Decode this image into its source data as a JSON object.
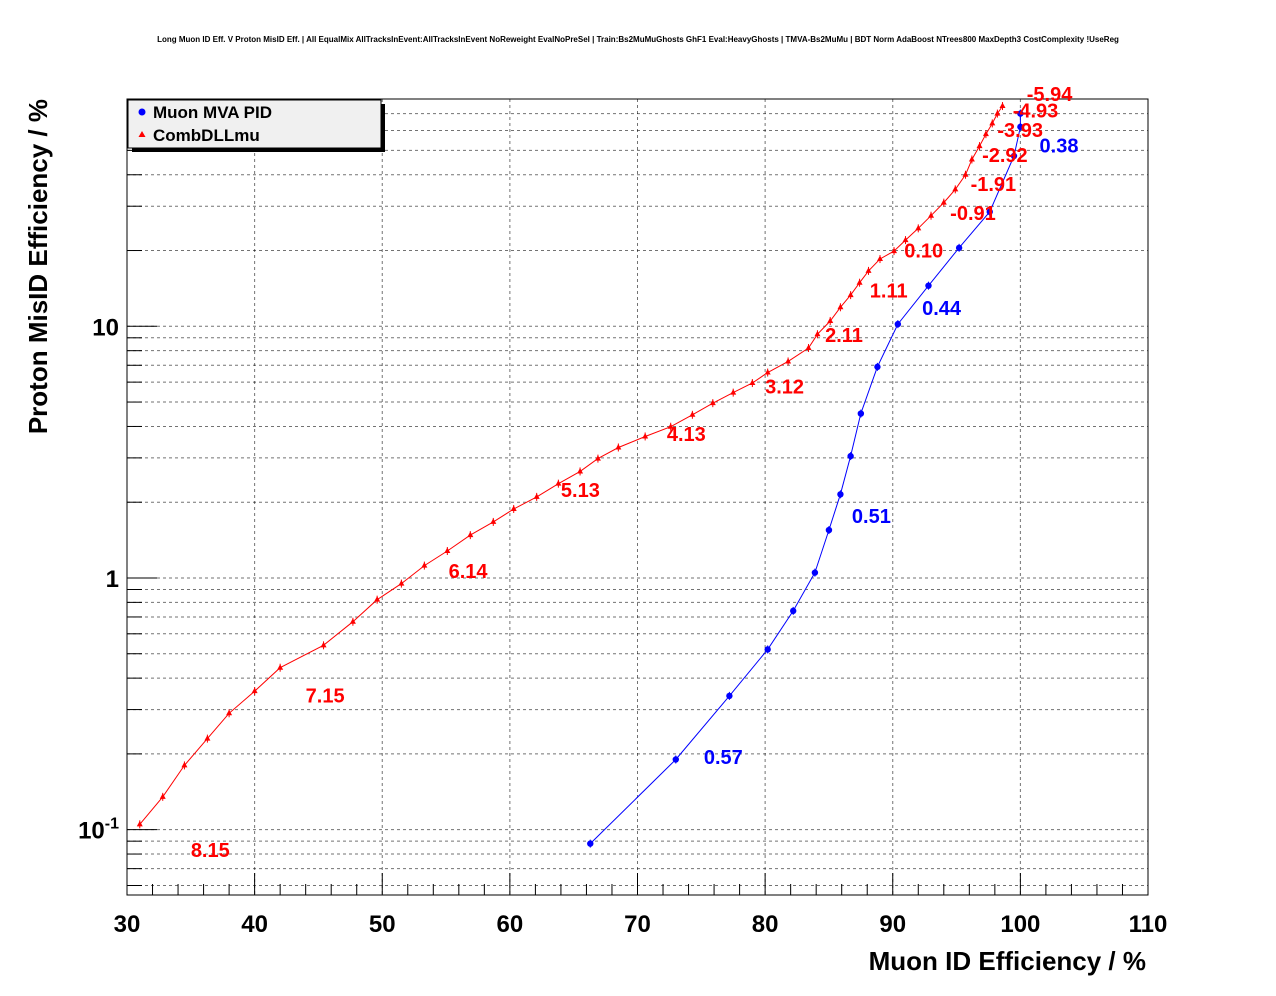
{
  "chart_data": {
    "type": "scatter",
    "title": "Long Muon ID Eff. V Proton MisID Eff. | All EqualMix AllTracksInEvent:AllTracksInEvent NoReweight EvalNoPreSel | Train:Bs2MuMuGhosts GhF1 Eval:HeavyGhosts | TMVA-Bs2MuMu | BDT Norm AdaBoost NTrees800 MaxDepth3 CostComplexity !UseReg",
    "xlabel": "Muon ID Efficiency / %",
    "ylabel": "Proton MisID Efficiency / %",
    "xlim": [
      30,
      110
    ],
    "ylim": [
      0.055,
      80
    ],
    "yscale": "log",
    "grid": true,
    "legend_position": "top-left",
    "x_ticks": [
      "30",
      "40",
      "50",
      "60",
      "70",
      "80",
      "90",
      "100",
      "110"
    ],
    "y_ticks": [
      {
        "value": 0.1,
        "base": "10",
        "exp": "-1"
      },
      {
        "value": 1,
        "base": "1",
        "exp": ""
      },
      {
        "value": 10,
        "base": "10",
        "exp": ""
      }
    ],
    "series": [
      {
        "name": "Muon MVA PID",
        "color": "#0000ff",
        "marker": "circle",
        "x": [
          66.3,
          73.0,
          77.2,
          80.2,
          82.2,
          83.9,
          85.0,
          85.9,
          86.7,
          87.5,
          88.8,
          90.4,
          92.8,
          95.2,
          97.6,
          99.5,
          100.0,
          100.0
        ],
        "y": [
          0.088,
          0.19,
          0.34,
          0.52,
          0.74,
          1.05,
          1.55,
          2.15,
          3.05,
          4.5,
          6.9,
          10.2,
          14.5,
          20.5,
          28.5,
          47.5,
          62.0,
          70.0
        ],
        "annotations": [
          {
            "text": "0.38",
            "x": 101.5,
            "y": 49
          },
          {
            "text": "0.44",
            "x": 92.3,
            "y": 11.1
          },
          {
            "text": "0.51",
            "x": 86.8,
            "y": 1.65
          },
          {
            "text": "0.57",
            "x": 75.2,
            "y": 0.182
          }
        ]
      },
      {
        "name": "CombDLLmu",
        "color": "#ff0000",
        "marker": "triangle",
        "x": [
          31.0,
          32.8,
          34.5,
          36.3,
          38.0,
          40.0,
          42.0,
          45.4,
          47.7,
          49.6,
          51.5,
          53.3,
          55.1,
          56.9,
          58.7,
          60.3,
          62.1,
          63.8,
          65.5,
          66.9,
          68.5,
          70.6,
          72.6,
          74.3,
          75.9,
          77.5,
          79.0,
          80.2,
          81.8,
          83.4,
          84.1,
          85.1,
          85.9,
          86.7,
          87.4,
          88.1,
          89.0,
          90.1,
          91.0,
          92.0,
          93.0,
          94.0,
          94.9,
          95.7,
          96.2,
          96.8,
          97.3,
          97.8,
          98.2,
          98.6
        ],
        "y": [
          0.105,
          0.135,
          0.18,
          0.23,
          0.29,
          0.355,
          0.44,
          0.54,
          0.67,
          0.82,
          0.95,
          1.12,
          1.28,
          1.48,
          1.67,
          1.88,
          2.1,
          2.37,
          2.65,
          2.98,
          3.3,
          3.65,
          3.99,
          4.45,
          4.95,
          5.45,
          5.95,
          6.55,
          7.25,
          8.2,
          9.3,
          10.5,
          11.9,
          13.3,
          14.9,
          16.6,
          18.5,
          19.9,
          22.0,
          24.5,
          27.5,
          31.0,
          35.0,
          40.0,
          46.0,
          52.0,
          58.0,
          64.0,
          70.0,
          75.0
        ],
        "annotations": [
          {
            "text": "8.15",
            "x": 35.0,
            "y": 0.078
          },
          {
            "text": "7.15",
            "x": 44.0,
            "y": 0.32
          },
          {
            "text": "6.14",
            "x": 55.2,
            "y": 1.0
          },
          {
            "text": "5.13",
            "x": 64.0,
            "y": 2.1
          },
          {
            "text": "4.13",
            "x": 72.3,
            "y": 3.5
          },
          {
            "text": "3.12",
            "x": 80.0,
            "y": 5.4
          },
          {
            "text": "2.11",
            "x": 84.7,
            "y": 8.65
          },
          {
            "text": "1.11",
            "x": 88.2,
            "y": 13.0
          },
          {
            "text": "0.10",
            "x": 90.9,
            "y": 18.8
          },
          {
            "text": "-0.91",
            "x": 94.5,
            "y": 26.5
          },
          {
            "text": "-1.91",
            "x": 96.1,
            "y": 34.5
          },
          {
            "text": "-2.92",
            "x": 97.0,
            "y": 45.0
          },
          {
            "text": "-3.93",
            "x": 98.2,
            "y": 56.5
          },
          {
            "text": "-4.93",
            "x": 99.4,
            "y": 67.5
          },
          {
            "text": "-5.94",
            "x": 100.5,
            "y": 78.5
          }
        ]
      }
    ]
  }
}
